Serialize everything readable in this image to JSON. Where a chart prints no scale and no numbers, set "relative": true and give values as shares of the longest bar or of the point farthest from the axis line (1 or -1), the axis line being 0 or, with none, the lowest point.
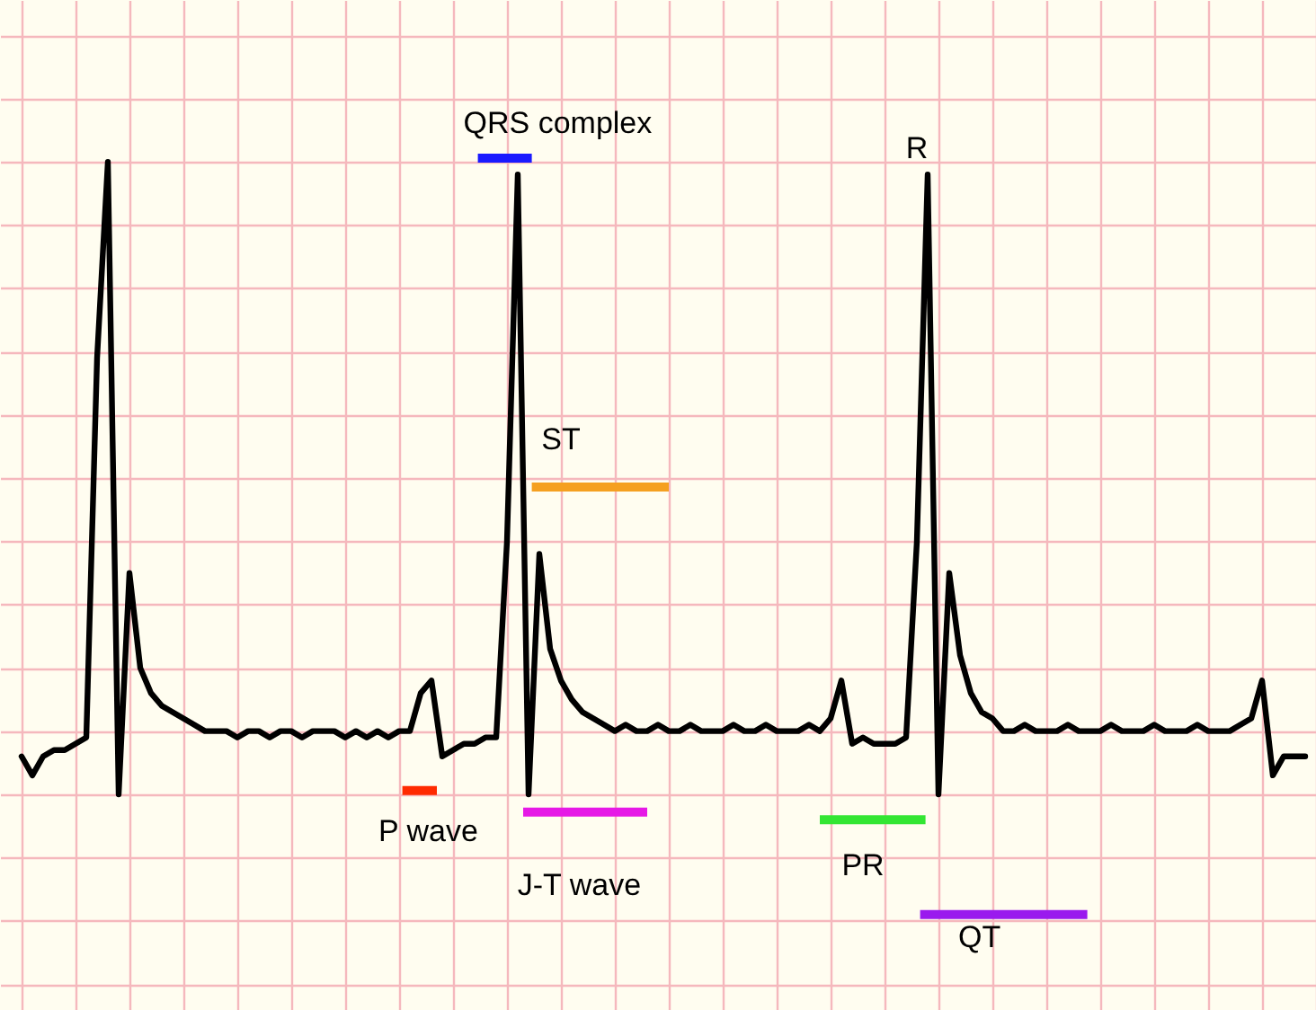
{
  "chart_data": {
    "type": "line",
    "relative": true,
    "grid": true,
    "categories": [
      null,
      null,
      null,
      null,
      null,
      null,
      null,
      null,
      null,
      null,
      null,
      null,
      null,
      null,
      null,
      null,
      null,
      null,
      null,
      null,
      null,
      null,
      null,
      null,
      null,
      null,
      null,
      null,
      null,
      null,
      null,
      null,
      null,
      null,
      null,
      null,
      null,
      null,
      null,
      null,
      null,
      null,
      null,
      null,
      null,
      null,
      null,
      null,
      null,
      null,
      null,
      null,
      null,
      null,
      null,
      null,
      null,
      null,
      null,
      null,
      null,
      null,
      null,
      null,
      null,
      null,
      null,
      null,
      null,
      null,
      null,
      null,
      null,
      null,
      null,
      null,
      null,
      null,
      null,
      null,
      null,
      null,
      null,
      null,
      null,
      null,
      null,
      null,
      null,
      null,
      null,
      null,
      null,
      null,
      null,
      null,
      null,
      null,
      null,
      null,
      null,
      null,
      null,
      null,
      null,
      null,
      null,
      null,
      null,
      null,
      null,
      null,
      null,
      null,
      null,
      null,
      null,
      null,
      null,
      null
    ],
    "series": [
      {
        "color": "#000000",
        "values": [
          0.06,
          0.03,
          0.06,
          0.07,
          0.07,
          0.08,
          0.09,
          0.69,
          1,
          0,
          0.35,
          0.2,
          0.16,
          0.14,
          0.13,
          0.12,
          0.11,
          0.1,
          0.1,
          0.1,
          0.09,
          0.1,
          0.1,
          0.09,
          0.1,
          0.1,
          0.09,
          0.1,
          0.1,
          0.1,
          0.09,
          0.1,
          0.09,
          0.1,
          0.09,
          0.1,
          0.1,
          0.16,
          0.18,
          0.06,
          0.07,
          0.08,
          0.08,
          0.09,
          0.09,
          0.4,
          0.98,
          0,
          0.38,
          0.23,
          0.18,
          0.15,
          0.13,
          0.12,
          0.11,
          0.1,
          0.11,
          0.1,
          0.1,
          0.11,
          0.1,
          0.1,
          0.11,
          0.1,
          0.1,
          0.1,
          0.11,
          0.1,
          0.1,
          0.11,
          0.1,
          0.1,
          0.1,
          0.11,
          0.1,
          0.12,
          0.18,
          0.08,
          0.09,
          0.08,
          0.08,
          0.08,
          0.09,
          0.4,
          0.98,
          0,
          0.35,
          0.22,
          0.16,
          0.13,
          0.12,
          0.1,
          0.1,
          0.11,
          0.1,
          0.1,
          0.1,
          0.11,
          0.1,
          0.1,
          0.1,
          0.11,
          0.1,
          0.1,
          0.1,
          0.11,
          0.1,
          0.1,
          0.1,
          0.11,
          0.1,
          0.1,
          0.1,
          0.11,
          0.12,
          0.18,
          0.03,
          0.06,
          0.06,
          0.06
        ]
      }
    ],
    "annotations": [
      "QRS complex",
      "R",
      "ST",
      "P wave",
      "J-T wave",
      "PR",
      "QT"
    ]
  }
}
